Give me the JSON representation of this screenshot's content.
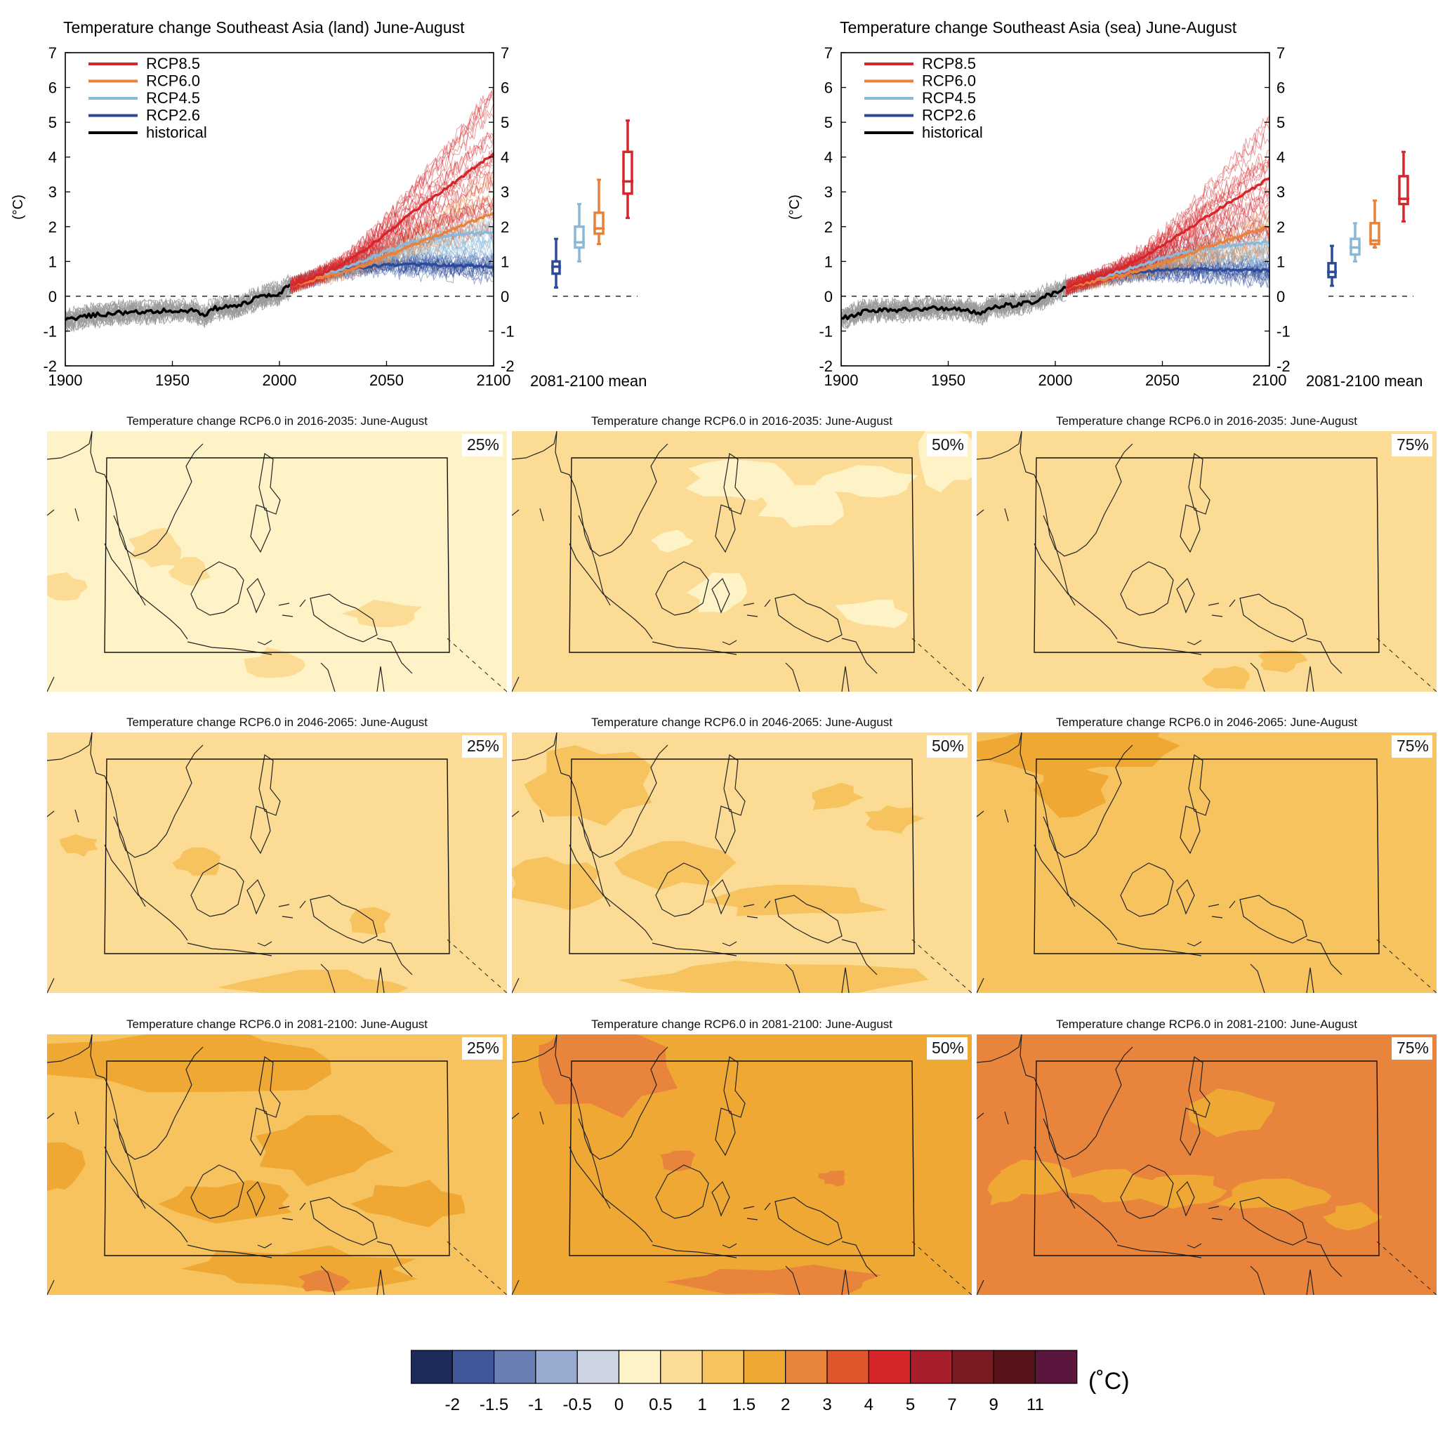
{
  "colors": {
    "rcp85": "#d7262b",
    "rcp60": "#e8813a",
    "rcp45": "#8ab8d8",
    "rcp26": "#2c4a9a",
    "historical": "#000000",
    "historical_spread": "#9a9a9a"
  },
  "chart_data": [
    {
      "type": "line",
      "title": "Temperature change Southeast Asia (land) June-August",
      "ylabel": "(°C)",
      "xlabel": "",
      "xlim": [
        1900,
        2100
      ],
      "ylim": [
        -2,
        7
      ],
      "xticks": [
        1900,
        1950,
        2000,
        2050,
        2100
      ],
      "yticks": [
        -2,
        -1,
        0,
        1,
        2,
        3,
        4,
        5,
        6,
        7
      ],
      "legend_position": "top-left",
      "boxplot_label": "2081-2100 mean",
      "series": [
        {
          "name": "RCP8.5",
          "x": [
            2005,
            2020,
            2030,
            2040,
            2050,
            2060,
            2070,
            2080,
            2090,
            2100
          ],
          "values": [
            0.3,
            0.65,
            0.95,
            1.35,
            1.8,
            2.3,
            2.75,
            3.2,
            3.65,
            4.1
          ]
        },
        {
          "name": "RCP6.0",
          "x": [
            2005,
            2020,
            2030,
            2040,
            2050,
            2060,
            2070,
            2080,
            2090,
            2100
          ],
          "values": [
            0.3,
            0.55,
            0.7,
            0.9,
            1.15,
            1.4,
            1.65,
            1.9,
            2.15,
            2.4
          ]
        },
        {
          "name": "RCP4.5",
          "x": [
            2005,
            2020,
            2030,
            2040,
            2050,
            2060,
            2070,
            2080,
            2090,
            2100
          ],
          "values": [
            0.3,
            0.6,
            0.8,
            1.05,
            1.3,
            1.5,
            1.65,
            1.75,
            1.8,
            1.85
          ]
        },
        {
          "name": "RCP2.6",
          "x": [
            2005,
            2020,
            2030,
            2040,
            2050,
            2060,
            2070,
            2080,
            2090,
            2100
          ],
          "values": [
            0.3,
            0.6,
            0.75,
            0.85,
            0.9,
            0.9,
            0.9,
            0.88,
            0.87,
            0.85
          ]
        },
        {
          "name": "historical",
          "x": [
            1900,
            1910,
            1920,
            1930,
            1940,
            1950,
            1960,
            1965,
            1970,
            1980,
            1990,
            2000,
            2005
          ],
          "values": [
            -0.7,
            -0.55,
            -0.5,
            -0.45,
            -0.45,
            -0.4,
            -0.4,
            -0.55,
            -0.35,
            -0.3,
            -0.05,
            0.1,
            0.3
          ]
        }
      ],
      "boxplots": [
        {
          "name": "RCP2.6",
          "min": 0.25,
          "q1": 0.65,
          "median": 0.85,
          "q3": 1.0,
          "max": 1.65
        },
        {
          "name": "RCP4.5",
          "min": 1.0,
          "q1": 1.4,
          "median": 1.55,
          "q3": 2.0,
          "max": 2.65
        },
        {
          "name": "RCP6.0",
          "min": 1.5,
          "q1": 1.8,
          "median": 1.95,
          "q3": 2.4,
          "max": 3.35
        },
        {
          "name": "RCP8.5",
          "min": 2.25,
          "q1": 2.95,
          "median": 3.3,
          "q3": 4.15,
          "max": 5.05
        }
      ]
    },
    {
      "type": "line",
      "title": "Temperature change Southeast Asia (sea) June-August",
      "ylabel": "(°C)",
      "xlabel": "",
      "xlim": [
        1900,
        2100
      ],
      "ylim": [
        -2,
        7
      ],
      "xticks": [
        1900,
        1950,
        2000,
        2050,
        2100
      ],
      "yticks": [
        -2,
        -1,
        0,
        1,
        2,
        3,
        4,
        5,
        6,
        7
      ],
      "legend_position": "top-left",
      "boxplot_label": "2081-2100 mean",
      "series": [
        {
          "name": "RCP8.5",
          "x": [
            2005,
            2020,
            2030,
            2040,
            2050,
            2060,
            2070,
            2080,
            2090,
            2100
          ],
          "values": [
            0.25,
            0.55,
            0.8,
            1.1,
            1.45,
            1.85,
            2.25,
            2.65,
            3.0,
            3.4
          ]
        },
        {
          "name": "RCP6.0",
          "x": [
            2005,
            2020,
            2030,
            2040,
            2050,
            2060,
            2070,
            2080,
            2090,
            2100
          ],
          "values": [
            0.25,
            0.45,
            0.6,
            0.75,
            0.95,
            1.15,
            1.4,
            1.6,
            1.8,
            2.0
          ]
        },
        {
          "name": "RCP4.5",
          "x": [
            2005,
            2020,
            2030,
            2040,
            2050,
            2060,
            2070,
            2080,
            2090,
            2100
          ],
          "values": [
            0.25,
            0.5,
            0.7,
            0.9,
            1.1,
            1.25,
            1.35,
            1.45,
            1.5,
            1.55
          ]
        },
        {
          "name": "RCP2.6",
          "x": [
            2005,
            2020,
            2030,
            2040,
            2050,
            2060,
            2070,
            2080,
            2090,
            2100
          ],
          "values": [
            0.25,
            0.5,
            0.62,
            0.7,
            0.75,
            0.77,
            0.77,
            0.76,
            0.75,
            0.74
          ]
        },
        {
          "name": "historical",
          "x": [
            1900,
            1910,
            1920,
            1930,
            1940,
            1950,
            1960,
            1965,
            1970,
            1980,
            1990,
            2000,
            2005
          ],
          "values": [
            -0.65,
            -0.45,
            -0.4,
            -0.4,
            -0.35,
            -0.35,
            -0.4,
            -0.5,
            -0.3,
            -0.25,
            -0.15,
            0.1,
            0.25
          ]
        }
      ],
      "boxplots": [
        {
          "name": "RCP2.6",
          "min": 0.3,
          "q1": 0.55,
          "median": 0.7,
          "q3": 0.95,
          "max": 1.45
        },
        {
          "name": "RCP4.5",
          "min": 1.0,
          "q1": 1.2,
          "median": 1.4,
          "q3": 1.65,
          "max": 2.1
        },
        {
          "name": "RCP6.0",
          "min": 1.4,
          "q1": 1.5,
          "median": 1.6,
          "q3": 2.1,
          "max": 2.75
        },
        {
          "name": "RCP8.5",
          "min": 2.15,
          "q1": 2.65,
          "median": 2.8,
          "q3": 3.45,
          "max": 4.15
        }
      ]
    },
    {
      "type": "heatmap",
      "title": "Temperature change RCP6.0 in 2016-2035: June-August",
      "percentiles": [
        "25%",
        "50%",
        "75%"
      ],
      "dominant_bins": [
        "0-0.5",
        "0.5-1",
        "0.5-1"
      ]
    },
    {
      "type": "heatmap",
      "title": "Temperature change RCP6.0 in 2046-2065: June-August",
      "percentiles": [
        "25%",
        "50%",
        "75%"
      ],
      "dominant_bins": [
        "0.5-1",
        "0.5-1 / 1-1.5",
        "1-1.5"
      ]
    },
    {
      "type": "heatmap",
      "title": "Temperature change RCP6.0 in 2081-2100: June-August",
      "percentiles": [
        "25%",
        "50%",
        "75%"
      ],
      "dominant_bins": [
        "1-1.5 / 1.5-2",
        "1.5-2",
        "2-3"
      ]
    }
  ],
  "colorbar": {
    "unit": "(˚C)",
    "tick_labels": [
      "-2",
      "-1.5",
      "-1",
      "-0.5",
      "0",
      "0.5",
      "1",
      "1.5",
      "2",
      "3",
      "4",
      "5",
      "7",
      "9",
      "11"
    ],
    "colors": [
      "#1d2a5a",
      "#40589b",
      "#6a7fb3",
      "#9aabd1",
      "#ccd4e3",
      "#fdf3c6",
      "#fcdc94",
      "#f6c35f",
      "#f0a835",
      "#e9843c",
      "#e2562e",
      "#d7262b",
      "#a81f2c",
      "#7a1a22",
      "#561318",
      "#5a163c"
    ]
  }
}
